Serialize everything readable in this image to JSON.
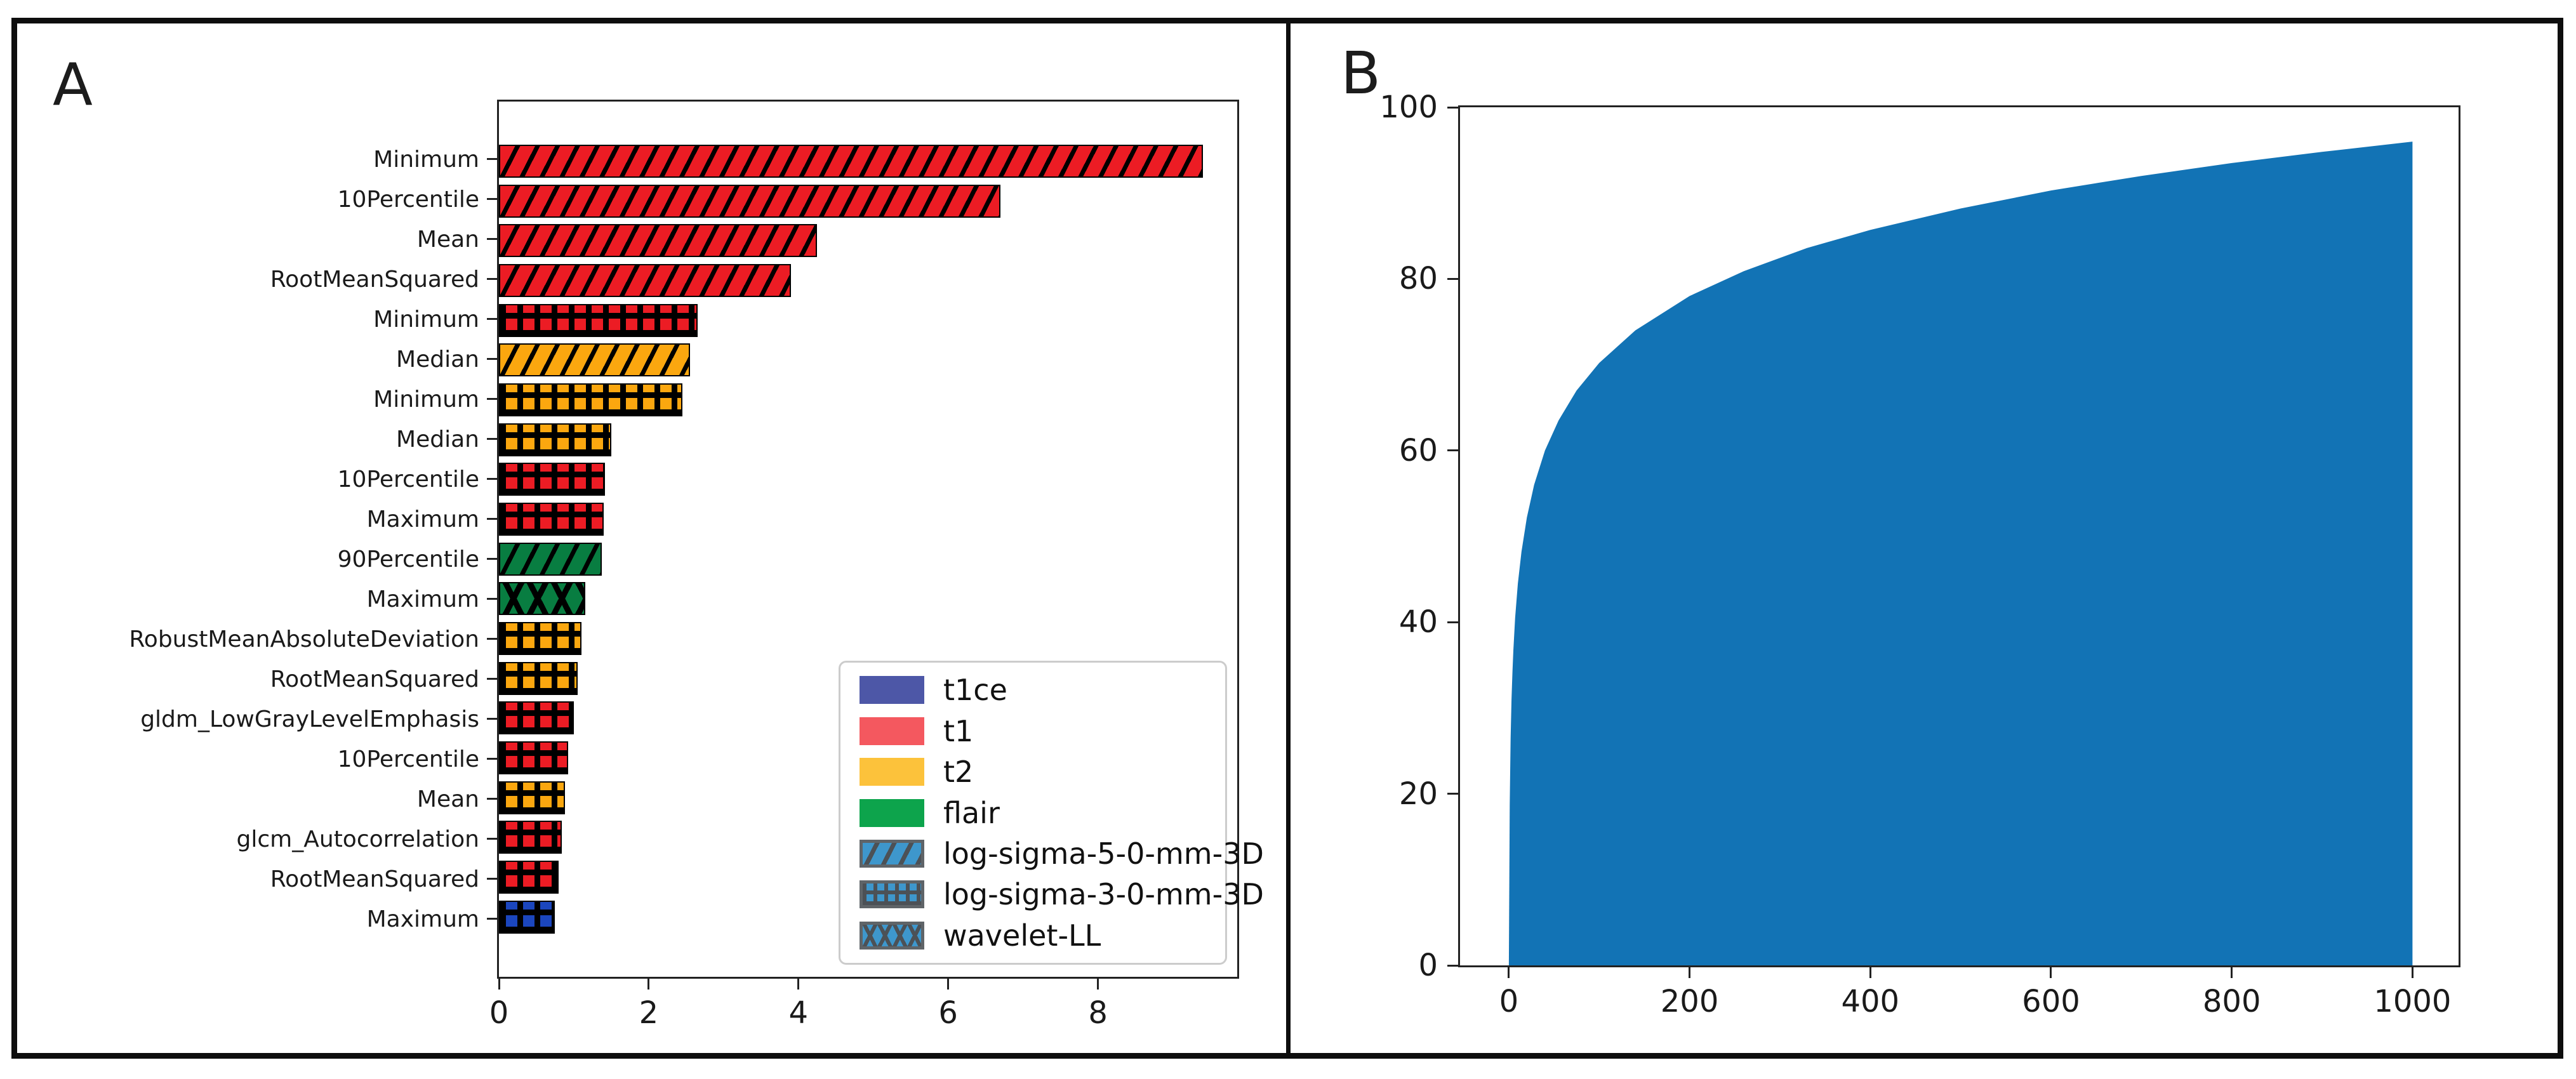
{
  "figure": {
    "panel_a_letter": "A",
    "panel_b_letter": "B",
    "background": "#ffffff",
    "frame_color": "#0e0e0e"
  },
  "chart_data": [
    {
      "id": "A",
      "type": "bar",
      "orientation": "horizontal",
      "title": "",
      "xlabel": "",
      "ylabel": "",
      "xlim": [
        0,
        9.86
      ],
      "xticks": [
        0,
        2,
        4,
        6,
        8
      ],
      "grid": false,
      "bars": [
        {
          "label": "Minimum",
          "value": 9.4,
          "modality": "t1",
          "filter": "log-sigma-5-0-mm-3D"
        },
        {
          "label": "10Percentile",
          "value": 6.7,
          "modality": "t1",
          "filter": "log-sigma-5-0-mm-3D"
        },
        {
          "label": "Mean",
          "value": 4.25,
          "modality": "t1",
          "filter": "log-sigma-5-0-mm-3D"
        },
        {
          "label": "RootMeanSquared",
          "value": 3.9,
          "modality": "t1",
          "filter": "log-sigma-5-0-mm-3D"
        },
        {
          "label": "Minimum",
          "value": 2.65,
          "modality": "t1",
          "filter": "log-sigma-3-0-mm-3D"
        },
        {
          "label": "Median",
          "value": 2.55,
          "modality": "t2",
          "filter": "log-sigma-5-0-mm-3D"
        },
        {
          "label": "Minimum",
          "value": 2.45,
          "modality": "t2",
          "filter": "log-sigma-3-0-mm-3D"
        },
        {
          "label": "Median",
          "value": 1.5,
          "modality": "t2",
          "filter": "log-sigma-3-0-mm-3D"
        },
        {
          "label": "10Percentile",
          "value": 1.42,
          "modality": "t1",
          "filter": "log-sigma-3-0-mm-3D"
        },
        {
          "label": "Maximum",
          "value": 1.4,
          "modality": "t1",
          "filter": "log-sigma-3-0-mm-3D"
        },
        {
          "label": "90Percentile",
          "value": 1.37,
          "modality": "flair",
          "filter": "log-sigma-5-0-mm-3D"
        },
        {
          "label": "Maximum",
          "value": 1.15,
          "modality": "flair",
          "filter": "wavelet-LL"
        },
        {
          "label": "RobustMeanAbsoluteDeviation",
          "value": 1.1,
          "modality": "t2",
          "filter": "log-sigma-3-0-mm-3D"
        },
        {
          "label": "RootMeanSquared",
          "value": 1.05,
          "modality": "t2",
          "filter": "log-sigma-3-0-mm-3D"
        },
        {
          "label": "gldm_LowGrayLevelEmphasis",
          "value": 1.0,
          "modality": "t1",
          "filter": "log-sigma-3-0-mm-3D"
        },
        {
          "label": "10Percentile",
          "value": 0.92,
          "modality": "t1",
          "filter": "log-sigma-3-0-mm-3D"
        },
        {
          "label": "Mean",
          "value": 0.88,
          "modality": "t2",
          "filter": "log-sigma-3-0-mm-3D"
        },
        {
          "label": "glcm_Autocorrelation",
          "value": 0.84,
          "modality": "t1",
          "filter": "log-sigma-3-0-mm-3D"
        },
        {
          "label": "RootMeanSquared",
          "value": 0.8,
          "modality": "t1",
          "filter": "log-sigma-3-0-mm-3D"
        },
        {
          "label": "Maximum",
          "value": 0.75,
          "modality": "t1ce",
          "filter": "log-sigma-3-0-mm-3D"
        }
      ],
      "modality_colors": {
        "t1ce": "#1b46be",
        "t1": "#ec1c24",
        "t2": "#fba70f",
        "flair": "#087d41"
      },
      "filter_hatches": {
        "log-sigma-5-0-mm-3D": "diagonal",
        "log-sigma-3-0-mm-3D": "grid",
        "wavelet-LL": "cross"
      },
      "legend_position": "lower right",
      "legend": [
        {
          "label": "t1ce",
          "swatch": "color",
          "color": "#4d57a7"
        },
        {
          "label": "t1",
          "swatch": "color",
          "color": "#f4585f"
        },
        {
          "label": "t2",
          "swatch": "color",
          "color": "#fcc23b"
        },
        {
          "label": "flair",
          "swatch": "color",
          "color": "#0da44c"
        },
        {
          "label": "log-sigma-5-0-mm-3D",
          "swatch": "hatch",
          "hatch": "diagonal"
        },
        {
          "label": "log-sigma-3-0-mm-3D",
          "swatch": "hatch",
          "hatch": "grid"
        },
        {
          "label": "wavelet-LL",
          "swatch": "hatch",
          "hatch": "cross"
        }
      ]
    },
    {
      "id": "B",
      "type": "area",
      "title": "",
      "xlabel": "",
      "ylabel": "",
      "color": "#1273b5",
      "xlim": [
        -54,
        1051
      ],
      "ylim": [
        0,
        100
      ],
      "xticks": [
        0,
        200,
        400,
        600,
        800,
        1000
      ],
      "yticks": [
        0,
        20,
        40,
        60,
        80,
        100
      ],
      "grid": false,
      "points": [
        [
          0,
          0
        ],
        [
          1,
          18.7
        ],
        [
          2,
          26.5
        ],
        [
          3,
          31.0
        ],
        [
          4,
          34.2
        ],
        [
          5,
          36.7
        ],
        [
          7,
          40.5
        ],
        [
          10,
          44.5
        ],
        [
          14,
          48.2
        ],
        [
          20,
          52.2
        ],
        [
          28,
          56.0
        ],
        [
          40,
          60.0
        ],
        [
          55,
          63.5
        ],
        [
          75,
          67.0
        ],
        [
          100,
          70.2
        ],
        [
          140,
          74.0
        ],
        [
          200,
          78.0
        ],
        [
          260,
          80.9
        ],
        [
          330,
          83.6
        ],
        [
          400,
          85.7
        ],
        [
          500,
          88.2
        ],
        [
          600,
          90.3
        ],
        [
          700,
          92.0
        ],
        [
          800,
          93.5
        ],
        [
          900,
          94.8
        ],
        [
          1000,
          96.0
        ]
      ]
    }
  ]
}
